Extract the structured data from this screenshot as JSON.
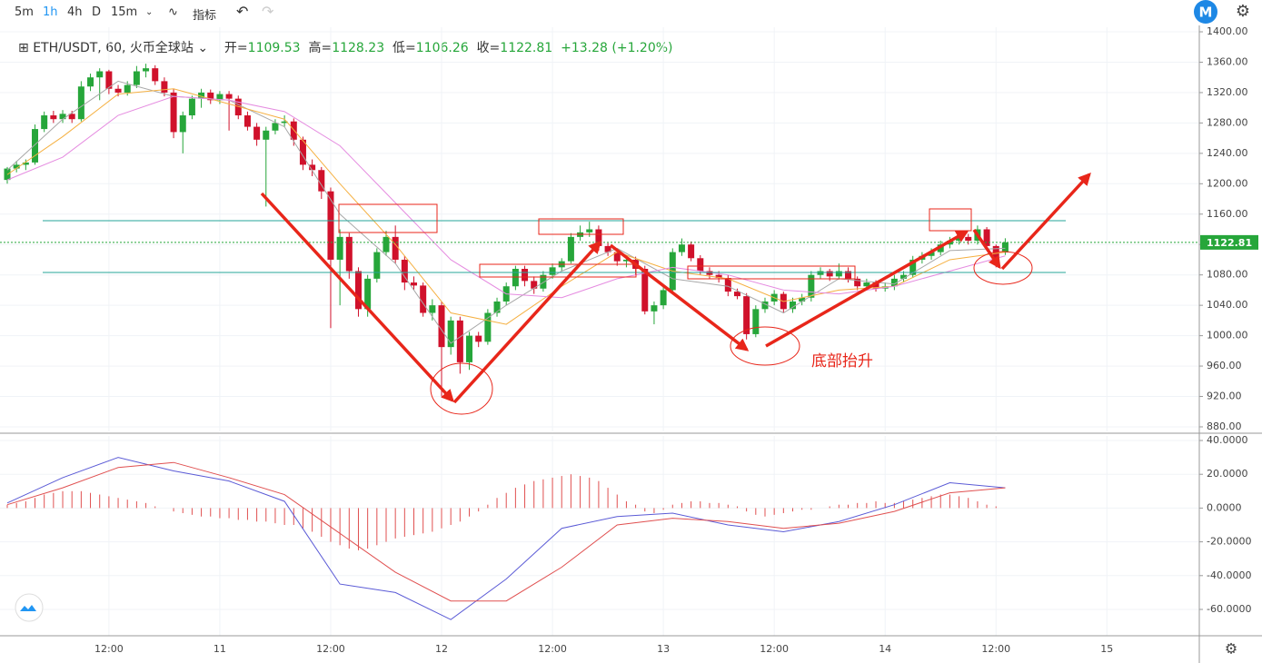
{
  "toolbar": {
    "intervals": [
      "5m",
      "1h",
      "4h",
      "D",
      "15m"
    ],
    "indicators": "指标"
  },
  "chart_data": [
    {
      "type": "candlestick",
      "title": "ETH/USDT, 60, 火币全球站",
      "ohlc_labels": [
        "开=",
        "高=",
        "低=",
        "收="
      ],
      "change": "+13.28",
      "change_pct": "(+1.20%)",
      "annotation": "底部抬升",
      "up_color": "#26a63a",
      "down_color": "#d0112b",
      "xlim": [
        0,
        129
      ],
      "xticks": [
        {
          "value": 11,
          "label": "12:00"
        },
        {
          "value": 23,
          "label": "11"
        },
        {
          "value": 35,
          "label": "12:00"
        },
        {
          "value": 47,
          "label": "12"
        },
        {
          "value": 59,
          "label": "12:00"
        },
        {
          "value": 71,
          "label": "13"
        },
        {
          "value": 83,
          "label": "12:00"
        },
        {
          "value": 95,
          "label": "14"
        },
        {
          "value": 107,
          "label": "12:00"
        },
        {
          "value": 119,
          "label": "15"
        }
      ],
      "ylim": [
        874,
        1406
      ],
      "yticks": [
        {
          "value": 880,
          "label": "880.00"
        },
        {
          "value": 920,
          "label": "920.00"
        },
        {
          "value": 960,
          "label": "960.00"
        },
        {
          "value": 1000,
          "label": "1000.00"
        },
        {
          "value": 1040,
          "label": "1040.00"
        },
        {
          "value": 1080,
          "label": "1080.00"
        },
        {
          "value": 1120,
          "label": "1120.00"
        },
        {
          "value": 1160,
          "label": "1160.00"
        },
        {
          "value": 1200,
          "label": "1200.00"
        },
        {
          "value": 1240,
          "label": "1240.00"
        },
        {
          "value": 1280,
          "label": "1280.00"
        },
        {
          "value": 1320,
          "label": "1320.00"
        },
        {
          "value": 1360,
          "label": "1360.00"
        },
        {
          "value": 1400,
          "label": "1400.00"
        }
      ],
      "grid": true,
      "candles": [
        [
          1205,
          1222,
          1200,
          1220
        ],
        [
          1220,
          1230,
          1215,
          1225
        ],
        [
          1225,
          1232,
          1218,
          1228
        ],
        [
          1228,
          1278,
          1225,
          1272
        ],
        [
          1272,
          1295,
          1268,
          1290
        ],
        [
          1290,
          1296,
          1280,
          1285
        ],
        [
          1285,
          1297,
          1280,
          1292
        ],
        [
          1292,
          1296,
          1280,
          1285
        ],
        [
          1285,
          1335,
          1282,
          1328
        ],
        [
          1328,
          1345,
          1322,
          1340
        ],
        [
          1340,
          1352,
          1310,
          1348
        ],
        [
          1348,
          1350,
          1318,
          1325
        ],
        [
          1325,
          1330,
          1315,
          1320
        ],
        [
          1320,
          1335,
          1316,
          1330
        ],
        [
          1330,
          1355,
          1326,
          1348
        ],
        [
          1348,
          1358,
          1340,
          1352
        ],
        [
          1352,
          1356,
          1330,
          1335
        ],
        [
          1335,
          1340,
          1315,
          1320
        ],
        [
          1320,
          1325,
          1260,
          1268
        ],
        [
          1268,
          1295,
          1240,
          1290
        ],
        [
          1290,
          1316,
          1285,
          1312
        ],
        [
          1312,
          1325,
          1300,
          1320
        ],
        [
          1320,
          1324,
          1305,
          1310
        ],
        [
          1310,
          1322,
          1305,
          1318
        ],
        [
          1318,
          1322,
          1270,
          1312
        ],
        [
          1312,
          1316,
          1285,
          1290
        ],
        [
          1290,
          1295,
          1270,
          1275
        ],
        [
          1275,
          1280,
          1250,
          1258
        ],
        [
          1258,
          1275,
          1170,
          1270
        ],
        [
          1270,
          1285,
          1265,
          1280
        ],
        [
          1280,
          1290,
          1275,
          1282
        ],
        [
          1282,
          1286,
          1250,
          1258
        ],
        [
          1258,
          1262,
          1218,
          1225
        ],
        [
          1225,
          1232,
          1210,
          1218
        ],
        [
          1218,
          1222,
          1180,
          1190
        ],
        [
          1190,
          1195,
          1010,
          1100
        ],
        [
          1100,
          1140,
          1040,
          1130
        ],
        [
          1130,
          1135,
          1075,
          1085
        ],
        [
          1085,
          1090,
          1025,
          1035
        ],
        [
          1035,
          1080,
          1025,
          1075
        ],
        [
          1075,
          1115,
          1070,
          1110
        ],
        [
          1110,
          1138,
          1105,
          1130
        ],
        [
          1130,
          1145,
          1095,
          1100
        ],
        [
          1100,
          1105,
          1060,
          1070
        ],
        [
          1070,
          1078,
          1060,
          1066
        ],
        [
          1066,
          1070,
          1025,
          1030
        ],
        [
          1030,
          1048,
          1020,
          1040
        ],
        [
          1040,
          1045,
          920,
          985
        ],
        [
          985,
          1025,
          975,
          1020
        ],
        [
          1020,
          1025,
          950,
          965
        ],
        [
          965,
          1005,
          955,
          1000
        ],
        [
          1000,
          1005,
          985,
          992
        ],
        [
          992,
          1035,
          988,
          1030
        ],
        [
          1030,
          1050,
          1025,
          1045
        ],
        [
          1045,
          1070,
          1040,
          1065
        ],
        [
          1065,
          1092,
          1060,
          1088
        ],
        [
          1088,
          1092,
          1065,
          1072
        ],
        [
          1072,
          1078,
          1055,
          1062
        ],
        [
          1062,
          1085,
          1058,
          1080
        ],
        [
          1080,
          1095,
          1075,
          1090
        ],
        [
          1090,
          1102,
          1085,
          1098
        ],
        [
          1098,
          1135,
          1095,
          1130
        ],
        [
          1130,
          1145,
          1125,
          1136
        ],
        [
          1136,
          1150,
          1130,
          1140
        ],
        [
          1140,
          1145,
          1112,
          1118
        ],
        [
          1118,
          1122,
          1105,
          1110
        ],
        [
          1110,
          1115,
          1092,
          1098
        ],
        [
          1098,
          1105,
          1090,
          1100
        ],
        [
          1100,
          1104,
          1080,
          1088
        ],
        [
          1088,
          1092,
          1028,
          1032
        ],
        [
          1032,
          1045,
          1015,
          1040
        ],
        [
          1040,
          1065,
          1035,
          1060
        ],
        [
          1060,
          1115,
          1055,
          1110
        ],
        [
          1110,
          1128,
          1105,
          1120
        ],
        [
          1120,
          1124,
          1098,
          1102
        ],
        [
          1102,
          1106,
          1080,
          1085
        ],
        [
          1085,
          1090,
          1075,
          1080
        ],
        [
          1080,
          1085,
          1070,
          1076
        ],
        [
          1076,
          1080,
          1052,
          1058
        ],
        [
          1058,
          1062,
          1048,
          1052
        ],
        [
          1052,
          1056,
          995,
          1002
        ],
        [
          1002,
          1040,
          998,
          1035
        ],
        [
          1035,
          1050,
          1030,
          1045
        ],
        [
          1045,
          1060,
          1040,
          1055
        ],
        [
          1055,
          1058,
          1030,
          1035
        ],
        [
          1035,
          1050,
          1030,
          1045
        ],
        [
          1045,
          1055,
          1040,
          1050
        ],
        [
          1050,
          1085,
          1045,
          1080
        ],
        [
          1080,
          1090,
          1075,
          1085
        ],
        [
          1085,
          1088,
          1072,
          1078
        ],
        [
          1078,
          1095,
          1074,
          1085
        ],
        [
          1085,
          1090,
          1070,
          1075
        ],
        [
          1075,
          1078,
          1060,
          1065
        ],
        [
          1065,
          1075,
          1060,
          1070
        ],
        [
          1070,
          1073,
          1058,
          1062
        ],
        [
          1062,
          1070,
          1058,
          1065
        ],
        [
          1065,
          1080,
          1060,
          1075
        ],
        [
          1075,
          1085,
          1070,
          1080
        ],
        [
          1080,
          1105,
          1076,
          1100
        ],
        [
          1100,
          1110,
          1095,
          1105
        ],
        [
          1105,
          1115,
          1100,
          1110
        ],
        [
          1110,
          1125,
          1106,
          1120
        ],
        [
          1120,
          1130,
          1115,
          1125
        ],
        [
          1125,
          1135,
          1120,
          1130
        ],
        [
          1130,
          1134,
          1120,
          1125
        ],
        [
          1125,
          1145,
          1120,
          1140
        ],
        [
          1140,
          1143,
          1112,
          1118
        ],
        [
          1118,
          1120,
          1090,
          1098
        ],
        [
          1109.53,
          1128.23,
          1106.26,
          1122.81
        ]
      ],
      "x": [
        0,
        6,
        12,
        18,
        24,
        30,
        36,
        42,
        48,
        54,
        60,
        66,
        72,
        78,
        84,
        90,
        96,
        102,
        108
      ],
      "series": [
        {
          "color": "#a8a8a8",
          "values": [
            1218,
            1285,
            1335,
            1315,
            1310,
            1275,
            1160,
            1095,
            990,
            1040,
            1085,
            1115,
            1075,
            1065,
            1030,
            1075,
            1068,
            1112,
            1115
          ]
        },
        {
          "color": "#f5b041",
          "values": [
            1212,
            1262,
            1318,
            1325,
            1305,
            1285,
            1200,
            1120,
            1030,
            1015,
            1065,
            1110,
            1085,
            1075,
            1045,
            1060,
            1065,
            1100,
            1110
          ]
        },
        {
          "color": "#e58be0",
          "values": [
            1205,
            1235,
            1290,
            1315,
            1310,
            1295,
            1250,
            1175,
            1100,
            1055,
            1050,
            1075,
            1090,
            1080,
            1060,
            1055,
            1065,
            1085,
            1105
          ]
        }
      ]
    },
    {
      "type": "macd",
      "ylim": [
        -75.6,
        42.7
      ],
      "yticks": [
        {
          "value": -60,
          "label": "-60.0000"
        },
        {
          "value": -40,
          "label": "-40.0000"
        },
        {
          "value": -20,
          "label": "-20.0000"
        },
        {
          "value": 0,
          "label": "0.0000"
        },
        {
          "value": 20,
          "label": "20.0000"
        },
        {
          "value": 40,
          "label": "40.0000"
        }
      ],
      "x": [
        0,
        6,
        12,
        18,
        24,
        30,
        36,
        42,
        48,
        54,
        60,
        66,
        72,
        78,
        84,
        90,
        96,
        102,
        108
      ],
      "series": [
        {
          "color": "#5b5bd6",
          "values": [
            3,
            18,
            30,
            22,
            16,
            4,
            -45,
            -50,
            -66,
            -42,
            -12,
            -5,
            -3,
            -10,
            -14,
            -8,
            2,
            15,
            12
          ]
        },
        {
          "color": "#e05050",
          "values": [
            2,
            12,
            24,
            27,
            18,
            8,
            -15,
            -38,
            -55,
            -55,
            -35,
            -10,
            -6,
            -8,
            -12,
            -9,
            -2,
            9,
            12
          ]
        }
      ],
      "hist_color": "#e05050",
      "histogram": [
        2,
        3,
        4,
        6,
        8,
        9,
        10,
        10,
        10,
        9,
        8,
        7,
        6,
        5,
        4,
        3,
        1,
        0,
        -2,
        -3,
        -4,
        -5,
        -5,
        -6,
        -6,
        -7,
        -7,
        -8,
        -8,
        -9,
        -10,
        -10,
        -12,
        -14,
        -17,
        -20,
        -22,
        -24,
        -25,
        -24,
        -22,
        -20,
        -18,
        -17,
        -16,
        -15,
        -14,
        -12,
        -10,
        -8,
        -5,
        -2,
        2,
        6,
        9,
        12,
        14,
        16,
        17,
        18,
        19,
        20,
        19,
        18,
        16,
        12,
        8,
        4,
        2,
        -2,
        -3,
        -1,
        2,
        3,
        4,
        4,
        3,
        3,
        2,
        1,
        -2,
        -4,
        -5,
        -4,
        -3,
        -2,
        -1,
        -1,
        0,
        1,
        2,
        2,
        3,
        3,
        4,
        3,
        3,
        4,
        5,
        6,
        7,
        8,
        8,
        7,
        6,
        4,
        2,
        1,
        0
      ]
    }
  ]
}
